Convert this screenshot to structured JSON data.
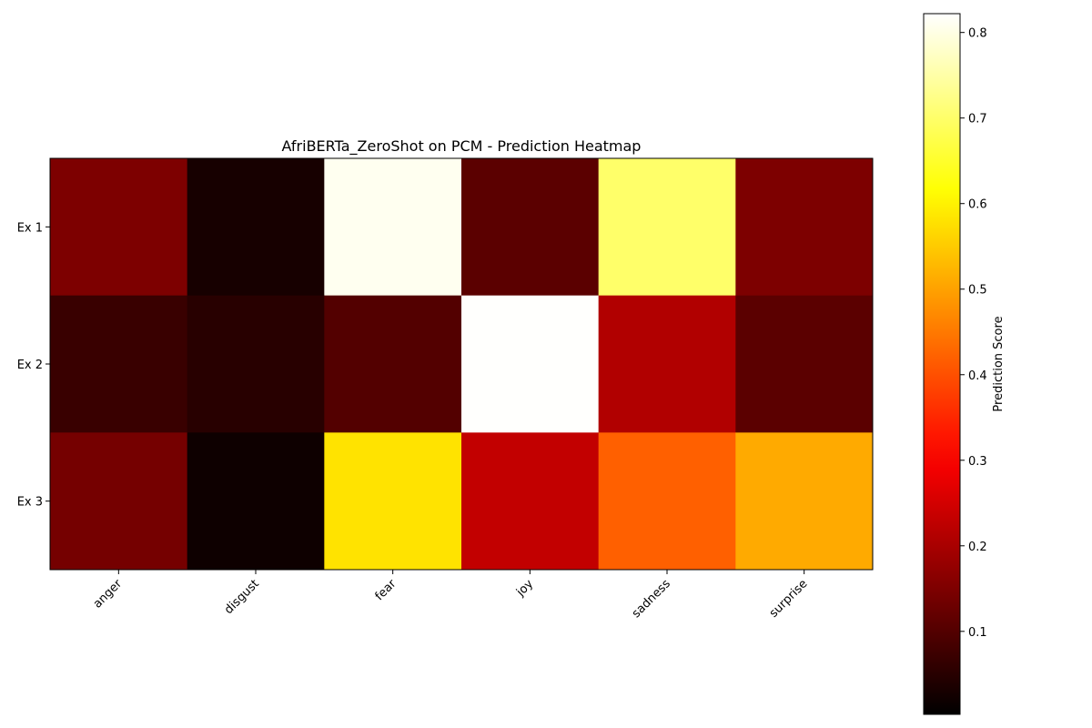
{
  "chart_data": {
    "type": "heatmap",
    "title": "AfriBERTa_ZeroShot on PCM - Prediction Heatmap",
    "columns": [
      "anger",
      "disgust",
      "fear",
      "joy",
      "sadness",
      "surprise"
    ],
    "rows": [
      "Ex 1",
      "Ex 2",
      "Ex 3"
    ],
    "values": [
      [
        0.15,
        0.03,
        0.81,
        0.11,
        0.7,
        0.15
      ],
      [
        0.07,
        0.05,
        0.1,
        0.82,
        0.21,
        0.11
      ],
      [
        0.14,
        0.02,
        0.58,
        0.23,
        0.42,
        0.51
      ]
    ],
    "colormap": "hot",
    "colorbar": {
      "label": "Prediction Score",
      "range": [
        0.003,
        0.822
      ],
      "ticks": [
        0.1,
        0.2,
        0.3,
        0.4,
        0.5,
        0.6,
        0.7,
        0.8
      ],
      "tick_labels": [
        "0.1",
        "0.2",
        "0.3",
        "0.4",
        "0.5",
        "0.6",
        "0.7",
        "0.8"
      ]
    },
    "grid": false
  }
}
